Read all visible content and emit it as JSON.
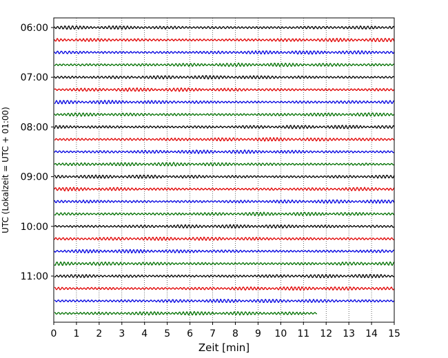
{
  "chart_data": {
    "type": "line",
    "title": "",
    "xlabel": "Zeit  [min]",
    "ylabel": "UTC (Lokalzeit = UTC + 01:00)",
    "xlim": [
      0,
      15
    ],
    "x_ticks": [
      "0",
      "1",
      "2",
      "3",
      "4",
      "5",
      "6",
      "7",
      "8",
      "9",
      "10",
      "11",
      "12",
      "13",
      "14",
      "15"
    ],
    "y_ticks": [
      "06:00",
      "07:00",
      "08:00",
      "09:00",
      "10:00",
      "11:00"
    ],
    "grid": "vertical dotted",
    "row_minutes": 15,
    "row_colors": [
      "#000000",
      "#e00000",
      "#0000e0",
      "#007000"
    ],
    "rows": [
      {
        "start": "06:00",
        "end_min": 15
      },
      {
        "start": "06:15",
        "end_min": 15
      },
      {
        "start": "06:30",
        "end_min": 15
      },
      {
        "start": "06:45",
        "end_min": 15
      },
      {
        "start": "07:00",
        "end_min": 15
      },
      {
        "start": "07:15",
        "end_min": 15
      },
      {
        "start": "07:30",
        "end_min": 15
      },
      {
        "start": "07:45",
        "end_min": 15
      },
      {
        "start": "08:00",
        "end_min": 15
      },
      {
        "start": "08:15",
        "end_min": 15
      },
      {
        "start": "08:30",
        "end_min": 15
      },
      {
        "start": "08:45",
        "end_min": 15
      },
      {
        "start": "09:00",
        "end_min": 15
      },
      {
        "start": "09:15",
        "end_min": 15
      },
      {
        "start": "09:30",
        "end_min": 15
      },
      {
        "start": "09:45",
        "end_min": 15
      },
      {
        "start": "10:00",
        "end_min": 15
      },
      {
        "start": "10:15",
        "end_min": 15
      },
      {
        "start": "10:30",
        "end_min": 15
      },
      {
        "start": "10:45",
        "end_min": 15
      },
      {
        "start": "11:00",
        "end_min": 15
      },
      {
        "start": "11:15",
        "end_min": 15
      },
      {
        "start": "11:30",
        "end_min": 15
      },
      {
        "start": "11:45",
        "end_min": 11.6
      }
    ]
  }
}
